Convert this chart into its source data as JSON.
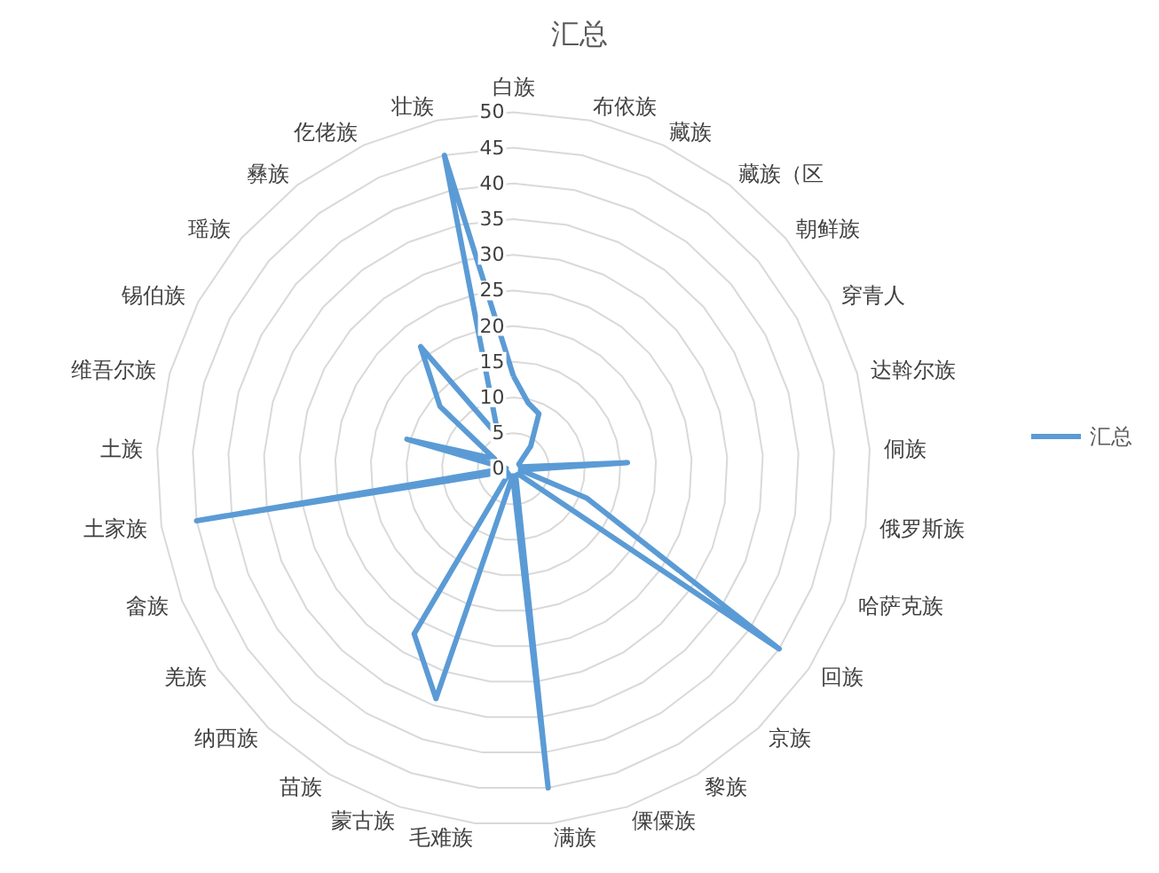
{
  "chart_data": {
    "type": "radar",
    "title": "汇总",
    "categories": [
      "白族",
      "布依族",
      "藏族",
      "藏族（区",
      "朝鲜族",
      "穿青人",
      "达斡尔族",
      "侗族",
      "俄罗斯族",
      "哈萨克族",
      "回族",
      "京族",
      "黎族",
      "傈僳族",
      "满族",
      "毛难族",
      "蒙古族",
      "苗族",
      "纳西族",
      "羌族",
      "畲族",
      "土家族",
      "土族",
      "维吾尔族",
      "锡伯族",
      "瑶族",
      "彝族",
      "仡佬族",
      "壮族"
    ],
    "series": [
      {
        "name": "汇总",
        "color": "#5b9bd5",
        "values": [
          13,
          9.5,
          8.5,
          4,
          1,
          1,
          1,
          16,
          1,
          11,
          45,
          1,
          1,
          1,
          45,
          1,
          34,
          27,
          1,
          1,
          1,
          45,
          1,
          15.5,
          3,
          13.5,
          21.5,
          5,
          45
        ]
      }
    ],
    "ylim": [
      0,
      50
    ],
    "yticks": [
      0,
      5,
      10,
      15,
      20,
      25,
      30,
      35,
      40,
      45,
      50
    ],
    "grid": true,
    "legend": "right",
    "marker": "none"
  }
}
